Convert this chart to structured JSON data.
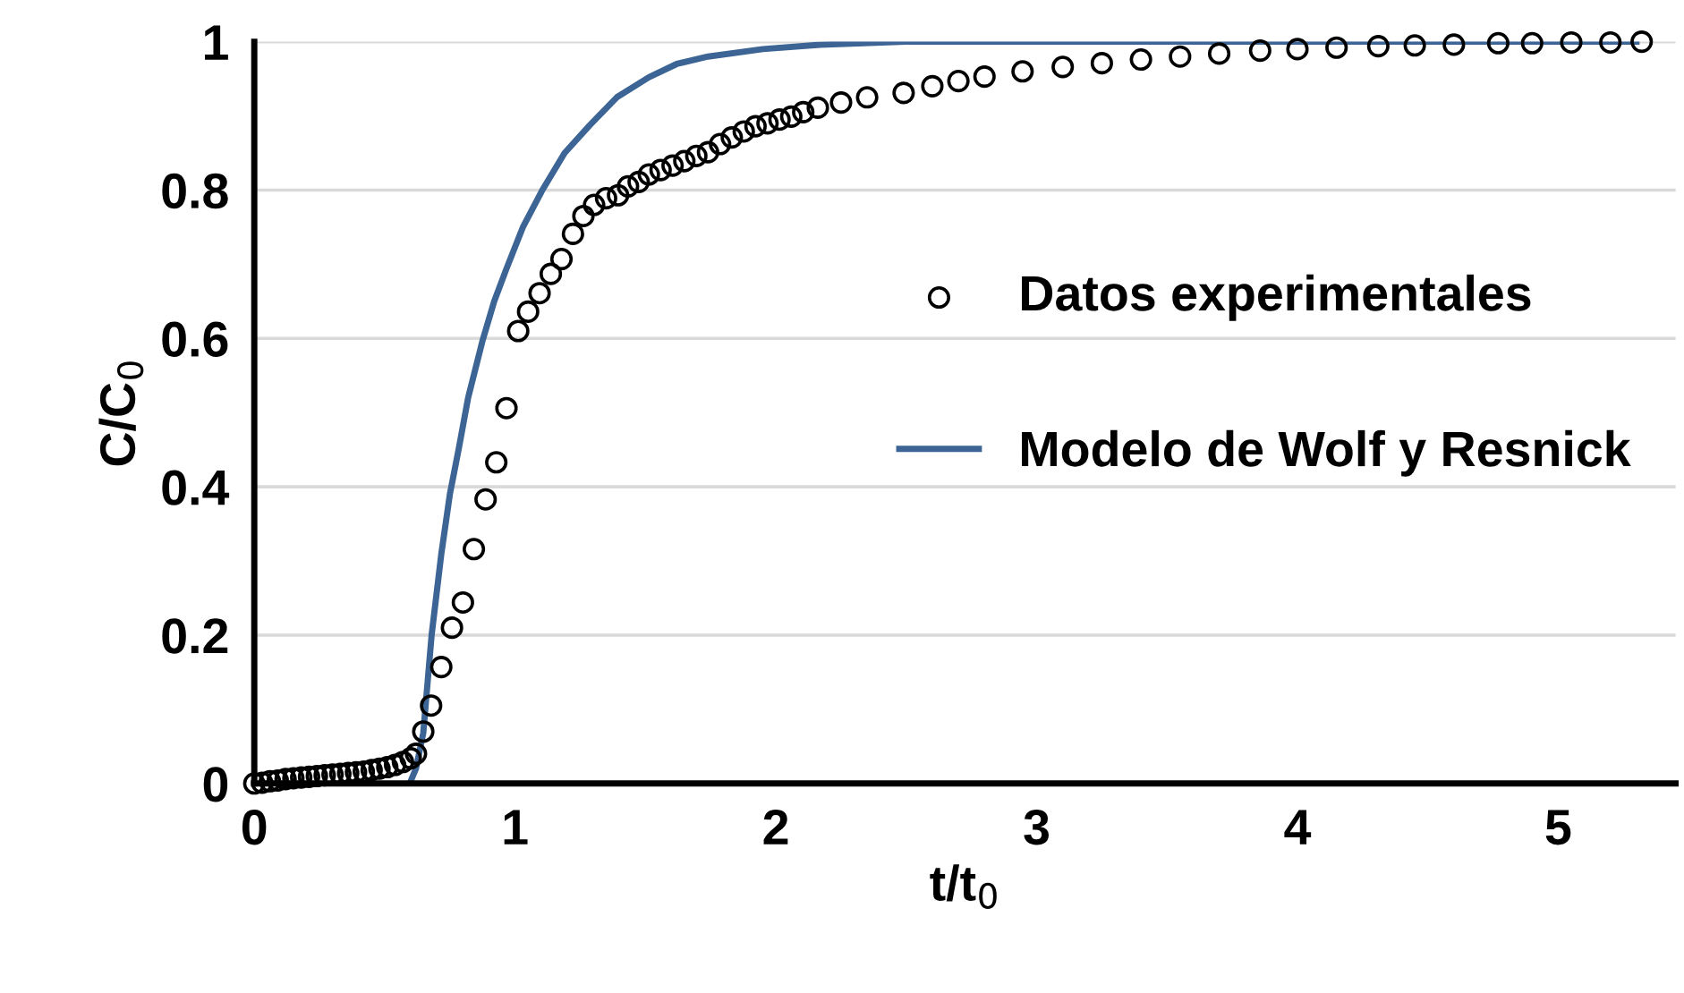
{
  "chart_data": {
    "type": "scatter",
    "xlabel": "t/t$_{0}$",
    "ylabel": "C/C$_{0}$",
    "xlim": [
      0,
      5.45
    ],
    "ylim": [
      0,
      1
    ],
    "xticks": [
      0,
      1,
      2,
      3,
      4,
      5
    ],
    "yticks": [
      0,
      0.2,
      0.4,
      0.6,
      0.8,
      1
    ],
    "grid": "y",
    "legend": "right",
    "series": [
      {
        "name": "Datos experimentales",
        "marker": "circle",
        "color": "#000000",
        "x": [
          0,
          0.03,
          0.06,
          0.09,
          0.12,
          0.15,
          0.18,
          0.21,
          0.24,
          0.27,
          0.3,
          0.33,
          0.36,
          0.39,
          0.42,
          0.45,
          0.48,
          0.51,
          0.54,
          0.57,
          0.6,
          0.62,
          0.648,
          0.678,
          0.717,
          0.758,
          0.8,
          0.842,
          0.887,
          0.928,
          0.967,
          1.012,
          1.05,
          1.094,
          1.137,
          1.178,
          1.222,
          1.262,
          1.303,
          1.349,
          1.395,
          1.433,
          1.474,
          1.513,
          1.558,
          1.604,
          1.649,
          1.695,
          1.74,
          1.786,
          1.831,
          1.877,
          1.922,
          1.968,
          2.014,
          2.059,
          2.105,
          2.161,
          2.25,
          2.35,
          2.49,
          2.6,
          2.7,
          2.8,
          2.946,
          3.1,
          3.25,
          3.4,
          3.55,
          3.7,
          3.857,
          4.0,
          4.15,
          4.31,
          4.45,
          4.6,
          4.77,
          4.9,
          5.05,
          5.2,
          5.32
        ],
        "values": [
          0,
          0.001,
          0.003,
          0.004,
          0.006,
          0.007,
          0.008,
          0.009,
          0.01,
          0.011,
          0.012,
          0.013,
          0.014,
          0.015,
          0.016,
          0.018,
          0.02,
          0.022,
          0.025,
          0.029,
          0.034,
          0.04,
          0.07,
          0.105,
          0.157,
          0.21,
          0.244,
          0.316,
          0.383,
          0.433,
          0.506,
          0.61,
          0.636,
          0.661,
          0.687,
          0.707,
          0.741,
          0.765,
          0.78,
          0.789,
          0.793,
          0.805,
          0.811,
          0.821,
          0.827,
          0.833,
          0.839,
          0.846,
          0.851,
          0.862,
          0.871,
          0.879,
          0.886,
          0.89,
          0.895,
          0.899,
          0.905,
          0.911,
          0.918,
          0.925,
          0.931,
          0.94,
          0.947,
          0.953,
          0.96,
          0.966,
          0.971,
          0.976,
          0.98,
          0.984,
          0.988,
          0.99,
          0.992,
          0.994,
          0.995,
          0.996,
          0.998,
          0.998,
          0.999,
          0.999,
          1.0
        ]
      },
      {
        "name": "Modelo de Wolf y Resnick",
        "type": "line",
        "marker": "none",
        "line_style": "solid",
        "color": "#3c6595",
        "x": [
          0.596,
          0.62,
          0.648,
          0.68,
          0.717,
          0.75,
          0.785,
          0.82,
          0.876,
          0.92,
          0.967,
          1.03,
          1.103,
          1.19,
          1.285,
          1.39,
          1.513,
          1.62,
          1.74,
          1.95,
          2.17,
          2.5,
          3,
          4,
          5.3
        ],
        "values": [
          0,
          0.02,
          0.068,
          0.2,
          0.309,
          0.39,
          0.453,
          0.52,
          0.598,
          0.65,
          0.694,
          0.75,
          0.799,
          0.85,
          0.887,
          0.925,
          0.952,
          0.97,
          0.98,
          0.99,
          0.996,
          1.0,
          1.0,
          1.0,
          1.0
        ]
      }
    ]
  }
}
